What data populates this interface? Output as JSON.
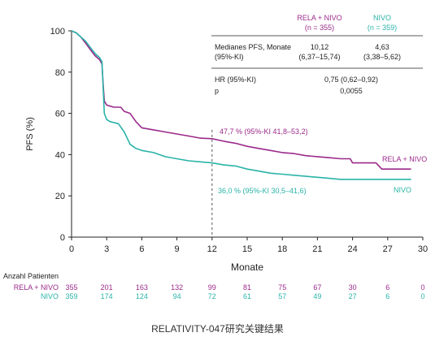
{
  "chart_data": {
    "type": "line",
    "ylabel": "PFS (%)",
    "xlabel": "Monate",
    "xlim": [
      0,
      30
    ],
    "ylim": [
      0,
      100
    ],
    "x_ticks": [
      0,
      3,
      6,
      9,
      12,
      15,
      18,
      21,
      24,
      27,
      30
    ],
    "y_ticks": [
      0,
      20,
      40,
      60,
      80,
      100
    ],
    "grid": false,
    "reference_line_x": 12,
    "series": [
      {
        "name": "RELA + NIVO",
        "color": "#9b2a8a",
        "points": [
          [
            0,
            100
          ],
          [
            0.4,
            99
          ],
          [
            0.8,
            97
          ],
          [
            1.2,
            94
          ],
          [
            1.6,
            91
          ],
          [
            2,
            88
          ],
          [
            2.4,
            86
          ],
          [
            2.6,
            84
          ],
          [
            2.7,
            74
          ],
          [
            2.8,
            66
          ],
          [
            3.0,
            64
          ],
          [
            3.3,
            63.5
          ],
          [
            3.6,
            63
          ],
          [
            4.2,
            63
          ],
          [
            4.5,
            61
          ],
          [
            5.0,
            60
          ],
          [
            5.5,
            56
          ],
          [
            6.0,
            53
          ],
          [
            7,
            52
          ],
          [
            8,
            51
          ],
          [
            9,
            50
          ],
          [
            10,
            49
          ],
          [
            11,
            48
          ],
          [
            12,
            47.7
          ],
          [
            13,
            46.5
          ],
          [
            14,
            45.5
          ],
          [
            15,
            44
          ],
          [
            16,
            43
          ],
          [
            17,
            42
          ],
          [
            18,
            41
          ],
          [
            19,
            40.5
          ],
          [
            20,
            39.5
          ],
          [
            21,
            39
          ],
          [
            22,
            38.5
          ],
          [
            23,
            38
          ],
          [
            23.8,
            38
          ],
          [
            24,
            36
          ],
          [
            26,
            36
          ],
          [
            26.5,
            33
          ],
          [
            29,
            33
          ]
        ]
      },
      {
        "name": "NIVO",
        "color": "#2ab3a8",
        "points": [
          [
            0,
            100
          ],
          [
            0.4,
            99
          ],
          [
            0.8,
            97
          ],
          [
            1.2,
            95
          ],
          [
            1.6,
            92
          ],
          [
            2,
            89
          ],
          [
            2.4,
            87
          ],
          [
            2.6,
            85
          ],
          [
            2.7,
            72
          ],
          [
            2.8,
            60
          ],
          [
            3.0,
            57
          ],
          [
            3.3,
            56
          ],
          [
            4.0,
            55
          ],
          [
            4.5,
            51
          ],
          [
            5.0,
            45
          ],
          [
            5.5,
            43
          ],
          [
            6,
            42
          ],
          [
            7,
            41
          ],
          [
            8,
            39
          ],
          [
            9,
            38
          ],
          [
            10,
            37
          ],
          [
            11,
            36.5
          ],
          [
            12,
            36
          ],
          [
            13,
            35
          ],
          [
            14,
            34.5
          ],
          [
            15,
            33
          ],
          [
            16,
            32
          ],
          [
            17,
            31
          ],
          [
            18,
            30.5
          ],
          [
            19,
            30
          ],
          [
            20,
            29.5
          ],
          [
            21,
            29
          ],
          [
            22,
            28.5
          ],
          [
            23,
            28
          ],
          [
            26,
            28
          ],
          [
            27,
            28
          ],
          [
            29,
            28
          ]
        ]
      }
    ],
    "annotations": [
      {
        "text": "47,7 % (95%-KI 41,8–53,2)",
        "color": "#9b2a8a"
      },
      {
        "text": "36,0 % (95%-KI 30,5–41,6)",
        "color": "#2ab3a8"
      }
    ],
    "series_labels": [
      {
        "text": "RELA + NIVO",
        "color": "#9b2a8a"
      },
      {
        "text": "NIVO",
        "color": "#2ab3a8"
      }
    ]
  },
  "table": {
    "col1_head": "RELA + NIVO",
    "col1_n": "(n = 355)",
    "col2_head": "NIVO",
    "col2_n": "(n = 359)",
    "row1_label": "Medianes PFS, Monate",
    "row1_sub": "(95%-KI)",
    "row1_c1": "10,12",
    "row1_c1_ci": "(6,37–15,74)",
    "row1_c2": "4,63",
    "row1_c2_ci": "(3,38–5,62)",
    "row2_label": "HR (95%-KI)",
    "row2_value": "0,75 (0,62–0,92)",
    "row3_label": "p",
    "row3_value": "0,0055"
  },
  "at_risk": {
    "title": "Anzahl Patienten",
    "rows": [
      {
        "label": "RELA + NIVO",
        "color": "#9b2a8a",
        "values": [
          "355",
          "201",
          "163",
          "132",
          "99",
          "81",
          "75",
          "67",
          "30",
          "6",
          "0"
        ]
      },
      {
        "label": "NIVO",
        "color": "#2ab3a8",
        "values": [
          "359",
          "174",
          "124",
          "94",
          "72",
          "61",
          "57",
          "49",
          "27",
          "6",
          "0"
        ]
      }
    ]
  },
  "caption": "RELATIVITY-047研究关键结果"
}
